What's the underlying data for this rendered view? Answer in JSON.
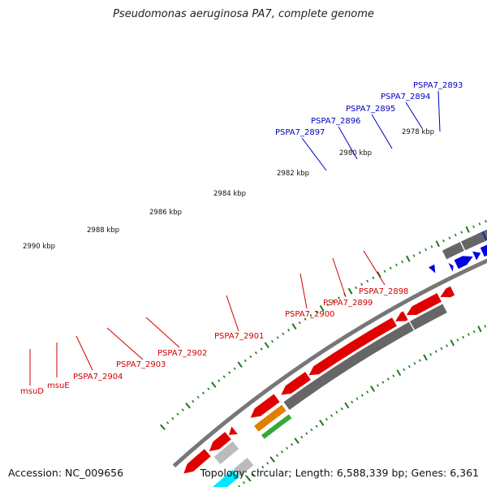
{
  "title": "Pseudomonas aeruginosa PA7, complete genome",
  "footer": {
    "accession": "Accession: NC_009656",
    "topology": "Topology: circular; Length: 6,588,339 bp; Genes: 6,361"
  },
  "ruler_labels": [
    "2978 kbp",
    "2980 kbp",
    "2982 kbp",
    "2984 kbp",
    "2986 kbp",
    "2988 kbp",
    "2990 kbp"
  ],
  "colors": {
    "forward_cds": "#0000e0",
    "reverse_cds": "#e00000",
    "gene_gray": "#666666",
    "backbone": "#888888",
    "tick": "#1a7a1a",
    "forward_label": "#0000c0",
    "reverse_label": "#d00000"
  },
  "forward_labels": [
    "PSPA7_2893",
    "PSPA7_2894",
    "PSPA7_2895",
    "PSPA7_2896",
    "PSPA7_2897"
  ],
  "reverse_labels": [
    "PSPA7_2898",
    "PSPA7_2899",
    "PSPA7_2900",
    "PSPA7_2901",
    "PSPA7_2902",
    "PSPA7_2903",
    "PSPA7_2904",
    "msuE",
    "msuD"
  ]
}
